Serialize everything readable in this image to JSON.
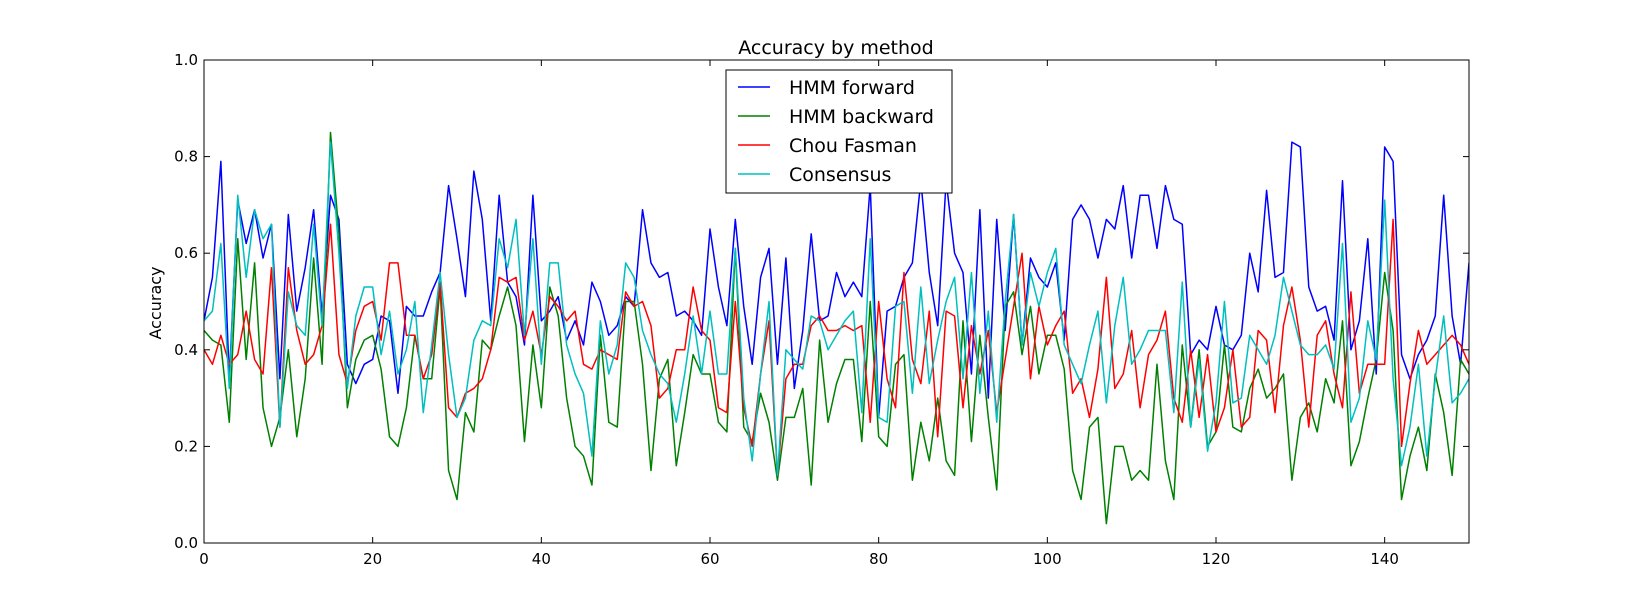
{
  "chart_data": {
    "type": "line",
    "title": "Accuracy by method",
    "xlabel": "",
    "ylabel": "Accuracy",
    "xlim": [
      0,
      150
    ],
    "ylim": [
      0.0,
      1.0
    ],
    "x_ticks": [
      0,
      20,
      40,
      60,
      80,
      100,
      120,
      140
    ],
    "y_ticks": [
      "0.0",
      "0.2",
      "0.4",
      "0.6",
      "0.8",
      "1.0"
    ],
    "grid": false,
    "legend_position": "top-center",
    "series": [
      {
        "name": "HMM forward",
        "color": "#0000ff",
        "values": [
          0.46,
          0.55,
          0.79,
          0.34,
          0.71,
          0.62,
          0.69,
          0.59,
          0.66,
          0.34,
          0.68,
          0.48,
          0.57,
          0.69,
          0.47,
          0.72,
          0.67,
          0.37,
          0.33,
          0.37,
          0.38,
          0.47,
          0.46,
          0.31,
          0.49,
          0.47,
          0.47,
          0.52,
          0.56,
          0.74,
          0.63,
          0.51,
          0.77,
          0.67,
          0.46,
          0.72,
          0.54,
          0.51,
          0.41,
          0.72,
          0.46,
          0.48,
          0.51,
          0.42,
          0.46,
          0.41,
          0.54,
          0.5,
          0.43,
          0.45,
          0.51,
          0.49,
          0.69,
          0.58,
          0.55,
          0.56,
          0.47,
          0.48,
          0.46,
          0.43,
          0.65,
          0.53,
          0.45,
          0.67,
          0.49,
          0.37,
          0.55,
          0.61,
          0.37,
          0.59,
          0.32,
          0.44,
          0.64,
          0.46,
          0.47,
          0.56,
          0.51,
          0.54,
          0.51,
          0.74,
          0.26,
          0.48,
          0.49,
          0.55,
          0.58,
          0.75,
          0.56,
          0.45,
          0.75,
          0.6,
          0.56,
          0.35,
          0.69,
          0.3,
          0.67,
          0.44,
          0.68,
          0.41,
          0.59,
          0.55,
          0.53,
          0.58,
          0.42,
          0.67,
          0.7,
          0.67,
          0.59,
          0.67,
          0.65,
          0.74,
          0.59,
          0.72,
          0.72,
          0.61,
          0.74,
          0.67,
          0.66,
          0.39,
          0.42,
          0.4,
          0.49,
          0.41,
          0.4,
          0.43,
          0.6,
          0.52,
          0.73,
          0.55,
          0.56,
          0.83,
          0.82,
          0.53,
          0.48,
          0.49,
          0.42,
          0.75,
          0.4,
          0.46,
          0.63,
          0.35,
          0.82,
          0.79,
          0.39,
          0.34,
          0.39,
          0.42,
          0.47,
          0.72,
          0.47,
          0.37,
          0.58
        ]
      },
      {
        "name": "HMM backward",
        "color": "#008000",
        "values": [
          0.44,
          0.42,
          0.41,
          0.25,
          0.63,
          0.38,
          0.58,
          0.28,
          0.2,
          0.26,
          0.4,
          0.22,
          0.34,
          0.59,
          0.37,
          0.85,
          0.64,
          0.28,
          0.38,
          0.42,
          0.43,
          0.36,
          0.22,
          0.2,
          0.28,
          0.43,
          0.34,
          0.34,
          0.53,
          0.15,
          0.09,
          0.27,
          0.23,
          0.42,
          0.4,
          0.47,
          0.53,
          0.45,
          0.21,
          0.41,
          0.28,
          0.53,
          0.47,
          0.3,
          0.2,
          0.18,
          0.12,
          0.43,
          0.25,
          0.24,
          0.5,
          0.5,
          0.37,
          0.15,
          0.34,
          0.38,
          0.16,
          0.27,
          0.39,
          0.35,
          0.35,
          0.25,
          0.23,
          0.61,
          0.24,
          0.21,
          0.31,
          0.25,
          0.13,
          0.26,
          0.26,
          0.32,
          0.12,
          0.42,
          0.25,
          0.33,
          0.38,
          0.38,
          0.21,
          0.5,
          0.22,
          0.2,
          0.37,
          0.39,
          0.13,
          0.25,
          0.17,
          0.3,
          0.17,
          0.14,
          0.46,
          0.21,
          0.43,
          0.26,
          0.11,
          0.49,
          0.52,
          0.39,
          0.49,
          0.35,
          0.43,
          0.43,
          0.36,
          0.15,
          0.09,
          0.24,
          0.26,
          0.04,
          0.2,
          0.2,
          0.13,
          0.15,
          0.13,
          0.37,
          0.17,
          0.09,
          0.41,
          0.24,
          0.4,
          0.2,
          0.23,
          0.41,
          0.24,
          0.23,
          0.32,
          0.36,
          0.3,
          0.32,
          0.35,
          0.13,
          0.26,
          0.29,
          0.23,
          0.34,
          0.29,
          0.46,
          0.16,
          0.21,
          0.3,
          0.38,
          0.56,
          0.44,
          0.09,
          0.18,
          0.24,
          0.15,
          0.35,
          0.27,
          0.14,
          0.38,
          0.35
        ]
      },
      {
        "name": "Chou Fasman",
        "color": "#ff0000",
        "values": [
          0.4,
          0.37,
          0.43,
          0.37,
          0.39,
          0.48,
          0.38,
          0.35,
          0.57,
          0.24,
          0.57,
          0.44,
          0.37,
          0.39,
          0.45,
          0.66,
          0.39,
          0.33,
          0.44,
          0.49,
          0.5,
          0.42,
          0.58,
          0.58,
          0.43,
          0.43,
          0.34,
          0.39,
          0.54,
          0.28,
          0.26,
          0.31,
          0.32,
          0.34,
          0.4,
          0.55,
          0.54,
          0.55,
          0.42,
          0.48,
          0.39,
          0.51,
          0.49,
          0.46,
          0.48,
          0.37,
          0.36,
          0.4,
          0.39,
          0.38,
          0.52,
          0.49,
          0.5,
          0.45,
          0.3,
          0.32,
          0.4,
          0.4,
          0.53,
          0.44,
          0.42,
          0.28,
          0.27,
          0.5,
          0.28,
          0.2,
          0.35,
          0.46,
          0.14,
          0.34,
          0.37,
          0.37,
          0.45,
          0.47,
          0.44,
          0.44,
          0.45,
          0.44,
          0.45,
          0.25,
          0.5,
          0.34,
          0.28,
          0.56,
          0.38,
          0.33,
          0.48,
          0.22,
          0.48,
          0.47,
          0.28,
          0.45,
          0.35,
          0.44,
          0.27,
          0.38,
          0.49,
          0.6,
          0.34,
          0.49,
          0.41,
          0.45,
          0.48,
          0.31,
          0.34,
          0.26,
          0.36,
          0.55,
          0.32,
          0.35,
          0.44,
          0.28,
          0.39,
          0.42,
          0.48,
          0.3,
          0.25,
          0.4,
          0.26,
          0.39,
          0.23,
          0.28,
          0.4,
          0.24,
          0.26,
          0.44,
          0.42,
          0.27,
          0.45,
          0.53,
          0.42,
          0.24,
          0.43,
          0.46,
          0.35,
          0.28,
          0.52,
          0.31,
          0.37,
          0.37,
          0.37,
          0.67,
          0.2,
          0.33,
          0.44,
          0.37,
          0.39,
          0.41,
          0.43,
          0.41,
          0.37
        ]
      },
      {
        "name": "Consensus",
        "color": "#00bfbf",
        "values": [
          0.46,
          0.48,
          0.62,
          0.32,
          0.72,
          0.55,
          0.69,
          0.63,
          0.66,
          0.24,
          0.52,
          0.45,
          0.43,
          0.66,
          0.45,
          0.83,
          0.6,
          0.32,
          0.47,
          0.53,
          0.53,
          0.39,
          0.48,
          0.35,
          0.4,
          0.5,
          0.27,
          0.41,
          0.56,
          0.39,
          0.26,
          0.3,
          0.42,
          0.46,
          0.45,
          0.63,
          0.57,
          0.67,
          0.43,
          0.63,
          0.37,
          0.58,
          0.58,
          0.41,
          0.35,
          0.31,
          0.18,
          0.46,
          0.35,
          0.41,
          0.58,
          0.55,
          0.44,
          0.39,
          0.35,
          0.33,
          0.25,
          0.35,
          0.47,
          0.35,
          0.48,
          0.35,
          0.35,
          0.61,
          0.3,
          0.17,
          0.35,
          0.5,
          0.14,
          0.4,
          0.38,
          0.36,
          0.47,
          0.46,
          0.4,
          0.43,
          0.46,
          0.48,
          0.27,
          0.63,
          0.26,
          0.25,
          0.49,
          0.5,
          0.31,
          0.53,
          0.33,
          0.42,
          0.5,
          0.55,
          0.34,
          0.56,
          0.31,
          0.48,
          0.25,
          0.5,
          0.68,
          0.41,
          0.56,
          0.49,
          0.56,
          0.61,
          0.41,
          0.37,
          0.33,
          0.41,
          0.48,
          0.29,
          0.45,
          0.55,
          0.37,
          0.4,
          0.44,
          0.44,
          0.44,
          0.27,
          0.54,
          0.24,
          0.38,
          0.19,
          0.29,
          0.5,
          0.29,
          0.3,
          0.43,
          0.4,
          0.37,
          0.43,
          0.55,
          0.48,
          0.41,
          0.39,
          0.39,
          0.41,
          0.36,
          0.62,
          0.25,
          0.3,
          0.46,
          0.38,
          0.71,
          0.34,
          0.16,
          0.24,
          0.37,
          0.18,
          0.34,
          0.47,
          0.29,
          0.31,
          0.34
        ]
      }
    ]
  }
}
